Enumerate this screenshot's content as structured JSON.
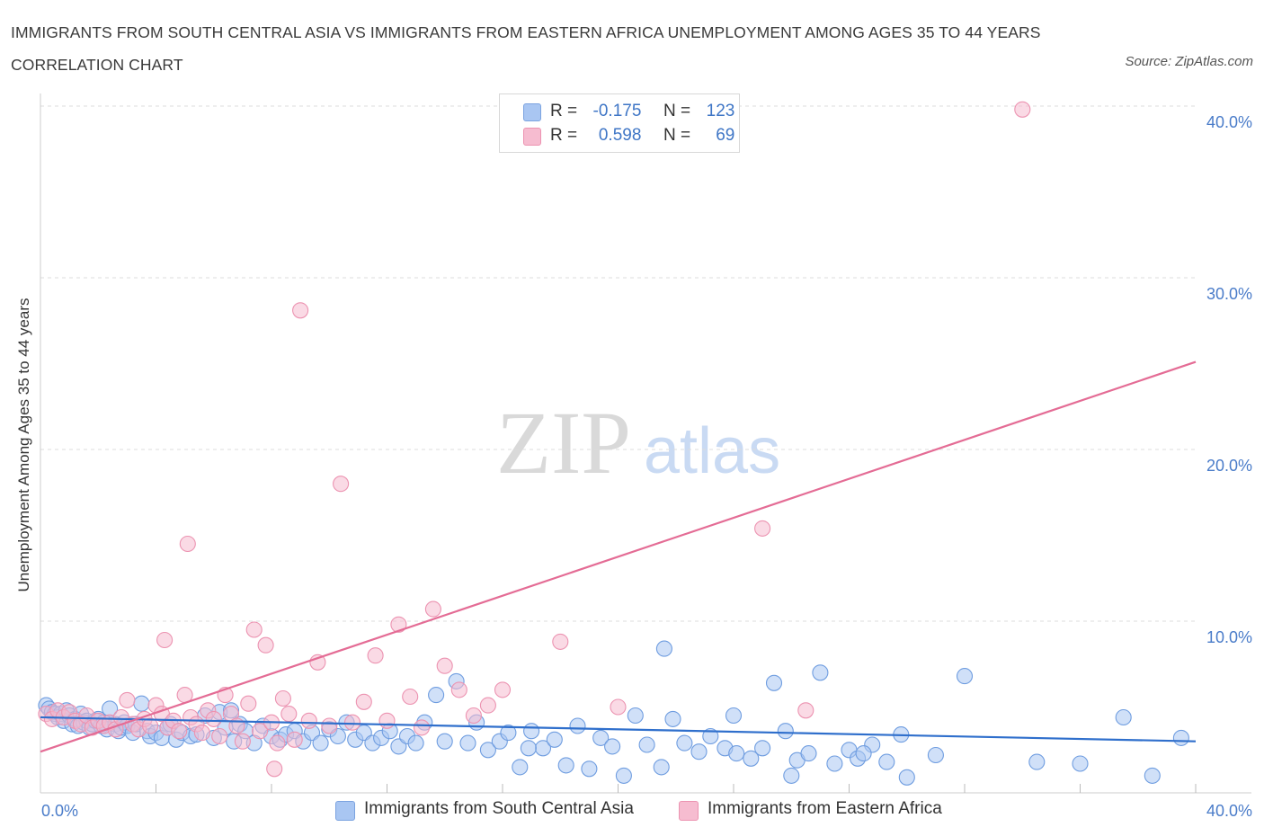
{
  "title": "IMMIGRANTS FROM SOUTH CENTRAL ASIA VS IMMIGRANTS FROM EASTERN AFRICA UNEMPLOYMENT AMONG AGES 35 TO 44 YEARS CORRELATION CHART",
  "source": "Source: ZipAtlas.com",
  "watermark": {
    "zip": "ZIP",
    "atlas": "atlas"
  },
  "legend": [
    {
      "r_label": "R =",
      "r_value": "-0.175",
      "n_label": "N =",
      "n_value": "123",
      "color": "#a9c6f2",
      "stroke": "#7ba3e0"
    },
    {
      "r_label": "R =",
      "r_value": "0.598",
      "n_label": "N =",
      "n_value": "69",
      "color": "#f6bcd0",
      "stroke": "#ec93b1"
    }
  ],
  "chart_data": {
    "type": "scatter",
    "title": "IMMIGRANTS FROM SOUTH CENTRAL ASIA VS IMMIGRANTS FROM EASTERN AFRICA UNEMPLOYMENT AMONG AGES 35 TO 44 YEARS CORRELATION CHART",
    "xlabel": "",
    "ylabel": "Unemployment Among Ages 35 to 44 years",
    "xlim": [
      0,
      40
    ],
    "ylim": [
      0,
      40
    ],
    "x_tick_labels": [
      "0.0%",
      "40.0%"
    ],
    "y_ticks": [
      10,
      20,
      30,
      40
    ],
    "y_tick_labels": [
      "10.0%",
      "20.0%",
      "30.0%",
      "40.0%"
    ],
    "grid": true,
    "legend_position": "top-center",
    "series": [
      {
        "name": "Immigrants from South Central Asia",
        "color": "#6f9de0",
        "fill": "#a9c6f2",
        "trend_color": "#2f6fcc",
        "R": -0.175,
        "N": 123,
        "trend": [
          [
            0,
            4.4
          ],
          [
            40,
            3.0
          ]
        ],
        "points": [
          [
            0.2,
            5.1
          ],
          [
            0.3,
            4.9
          ],
          [
            0.4,
            4.7
          ],
          [
            0.5,
            4.6
          ],
          [
            0.6,
            4.4
          ],
          [
            0.7,
            4.6
          ],
          [
            0.8,
            4.2
          ],
          [
            0.9,
            4.8
          ],
          [
            1.0,
            4.5
          ],
          [
            1.1,
            4.0
          ],
          [
            1.2,
            4.3
          ],
          [
            1.3,
            3.9
          ],
          [
            1.4,
            4.6
          ],
          [
            1.5,
            4.1
          ],
          [
            1.6,
            4.2
          ],
          [
            1.7,
            3.8
          ],
          [
            1.8,
            4.0
          ],
          [
            1.9,
            4.2
          ],
          [
            2.0,
            4.3
          ],
          [
            2.1,
            3.9
          ],
          [
            2.2,
            4.1
          ],
          [
            2.3,
            3.7
          ],
          [
            2.4,
            4.9
          ],
          [
            2.6,
            4.0
          ],
          [
            2.7,
            3.6
          ],
          [
            2.8,
            3.8
          ],
          [
            2.9,
            4.1
          ],
          [
            3.0,
            3.9
          ],
          [
            3.2,
            3.5
          ],
          [
            3.3,
            4.0
          ],
          [
            3.5,
            5.2
          ],
          [
            3.7,
            3.6
          ],
          [
            3.8,
            3.3
          ],
          [
            4.0,
            3.5
          ],
          [
            4.2,
            3.2
          ],
          [
            4.4,
            3.8
          ],
          [
            4.5,
            4.0
          ],
          [
            4.7,
            3.1
          ],
          [
            4.9,
            3.5
          ],
          [
            5.2,
            3.3
          ],
          [
            5.4,
            3.4
          ],
          [
            5.7,
            4.5
          ],
          [
            6.0,
            3.2
          ],
          [
            6.2,
            4.7
          ],
          [
            6.4,
            3.8
          ],
          [
            6.6,
            4.8
          ],
          [
            6.7,
            3.0
          ],
          [
            6.9,
            4.0
          ],
          [
            7.1,
            3.6
          ],
          [
            7.4,
            2.9
          ],
          [
            7.7,
            3.9
          ],
          [
            8.0,
            3.3
          ],
          [
            8.3,
            3.1
          ],
          [
            8.5,
            3.4
          ],
          [
            8.8,
            3.6
          ],
          [
            9.1,
            3.0
          ],
          [
            9.4,
            3.5
          ],
          [
            9.7,
            2.9
          ],
          [
            10.0,
            3.7
          ],
          [
            10.3,
            3.3
          ],
          [
            10.6,
            4.1
          ],
          [
            10.9,
            3.1
          ],
          [
            11.2,
            3.5
          ],
          [
            11.5,
            2.9
          ],
          [
            11.8,
            3.2
          ],
          [
            12.1,
            3.6
          ],
          [
            12.4,
            2.7
          ],
          [
            12.7,
            3.3
          ],
          [
            13.0,
            2.9
          ],
          [
            13.3,
            4.1
          ],
          [
            13.7,
            5.7
          ],
          [
            14.0,
            3.0
          ],
          [
            14.4,
            6.5
          ],
          [
            14.8,
            2.9
          ],
          [
            15.1,
            4.1
          ],
          [
            15.5,
            2.5
          ],
          [
            15.9,
            3.0
          ],
          [
            16.2,
            3.5
          ],
          [
            16.6,
            1.5
          ],
          [
            17.0,
            3.6
          ],
          [
            17.4,
            2.6
          ],
          [
            17.8,
            3.1
          ],
          [
            18.2,
            1.6
          ],
          [
            18.6,
            3.9
          ],
          [
            19.0,
            1.4
          ],
          [
            19.4,
            3.2
          ],
          [
            19.8,
            2.7
          ],
          [
            20.2,
            1.0
          ],
          [
            20.6,
            4.5
          ],
          [
            21.0,
            2.8
          ],
          [
            21.5,
            1.5
          ],
          [
            21.9,
            4.3
          ],
          [
            22.3,
            2.9
          ],
          [
            22.8,
            2.4
          ],
          [
            23.2,
            3.3
          ],
          [
            23.7,
            2.6
          ],
          [
            24.1,
            2.3
          ],
          [
            24.6,
            2.0
          ],
          [
            25.0,
            2.6
          ],
          [
            25.4,
            6.4
          ],
          [
            25.8,
            3.6
          ],
          [
            26.2,
            1.9
          ],
          [
            26.6,
            2.3
          ],
          [
            27.0,
            7.0
          ],
          [
            27.5,
            1.7
          ],
          [
            28.0,
            2.5
          ],
          [
            28.3,
            2.0
          ],
          [
            28.8,
            2.8
          ],
          [
            29.3,
            1.8
          ],
          [
            29.8,
            3.4
          ],
          [
            16.9,
            2.6
          ],
          [
            21.6,
            8.4
          ],
          [
            24.0,
            4.5
          ],
          [
            26.0,
            1.0
          ],
          [
            28.5,
            2.3
          ],
          [
            30.0,
            0.9
          ],
          [
            31.0,
            2.2
          ],
          [
            32.0,
            6.8
          ],
          [
            34.5,
            1.8
          ],
          [
            36.0,
            1.7
          ],
          [
            37.5,
            4.4
          ],
          [
            38.5,
            1.0
          ],
          [
            39.5,
            3.2
          ]
        ]
      },
      {
        "name": "Immigrants from Eastern Africa",
        "color": "#ec93b1",
        "fill": "#f6bcd0",
        "trend_color": "#e46c95",
        "R": 0.598,
        "N": 69,
        "trend": [
          [
            0,
            2.4
          ],
          [
            40,
            25.1
          ]
        ],
        "points": [
          [
            0.2,
            4.6
          ],
          [
            0.4,
            4.3
          ],
          [
            0.6,
            4.8
          ],
          [
            0.8,
            4.4
          ],
          [
            1.0,
            4.7
          ],
          [
            1.2,
            4.2
          ],
          [
            1.4,
            4.0
          ],
          [
            1.6,
            4.5
          ],
          [
            1.8,
            3.8
          ],
          [
            2.0,
            4.2
          ],
          [
            2.2,
            3.9
          ],
          [
            2.4,
            4.1
          ],
          [
            2.6,
            3.7
          ],
          [
            2.8,
            4.4
          ],
          [
            3.0,
            5.4
          ],
          [
            3.2,
            4.0
          ],
          [
            3.4,
            3.7
          ],
          [
            3.6,
            4.3
          ],
          [
            3.8,
            3.9
          ],
          [
            4.0,
            5.1
          ],
          [
            4.2,
            4.6
          ],
          [
            4.4,
            3.8
          ],
          [
            4.6,
            4.2
          ],
          [
            4.8,
            3.6
          ],
          [
            5.0,
            5.7
          ],
          [
            5.2,
            4.4
          ],
          [
            5.4,
            4.0
          ],
          [
            5.6,
            3.5
          ],
          [
            5.8,
            4.8
          ],
          [
            6.0,
            4.3
          ],
          [
            6.2,
            3.3
          ],
          [
            6.4,
            5.7
          ],
          [
            6.6,
            4.6
          ],
          [
            6.8,
            3.9
          ],
          [
            7.0,
            3.0
          ],
          [
            7.2,
            5.2
          ],
          [
            7.4,
            9.5
          ],
          [
            7.6,
            3.6
          ],
          [
            7.8,
            8.6
          ],
          [
            8.0,
            4.1
          ],
          [
            8.2,
            2.9
          ],
          [
            8.4,
            5.5
          ],
          [
            8.6,
            4.6
          ],
          [
            8.8,
            3.1
          ],
          [
            9.0,
            28.1
          ],
          [
            9.3,
            4.2
          ],
          [
            9.6,
            7.6
          ],
          [
            10.0,
            3.9
          ],
          [
            10.4,
            18.0
          ],
          [
            10.8,
            4.1
          ],
          [
            11.2,
            5.3
          ],
          [
            11.6,
            8.0
          ],
          [
            12.0,
            4.2
          ],
          [
            12.4,
            9.8
          ],
          [
            12.8,
            5.6
          ],
          [
            13.2,
            3.8
          ],
          [
            13.6,
            10.7
          ],
          [
            14.0,
            7.4
          ],
          [
            14.5,
            6.0
          ],
          [
            15.0,
            4.5
          ],
          [
            15.5,
            5.1
          ],
          [
            16.0,
            6.0
          ],
          [
            5.1,
            14.5
          ],
          [
            4.3,
            8.9
          ],
          [
            8.1,
            1.4
          ],
          [
            18.0,
            8.8
          ],
          [
            20.0,
            5.0
          ],
          [
            25.0,
            15.4
          ],
          [
            26.5,
            4.8
          ],
          [
            34.0,
            39.8
          ]
        ]
      }
    ]
  }
}
